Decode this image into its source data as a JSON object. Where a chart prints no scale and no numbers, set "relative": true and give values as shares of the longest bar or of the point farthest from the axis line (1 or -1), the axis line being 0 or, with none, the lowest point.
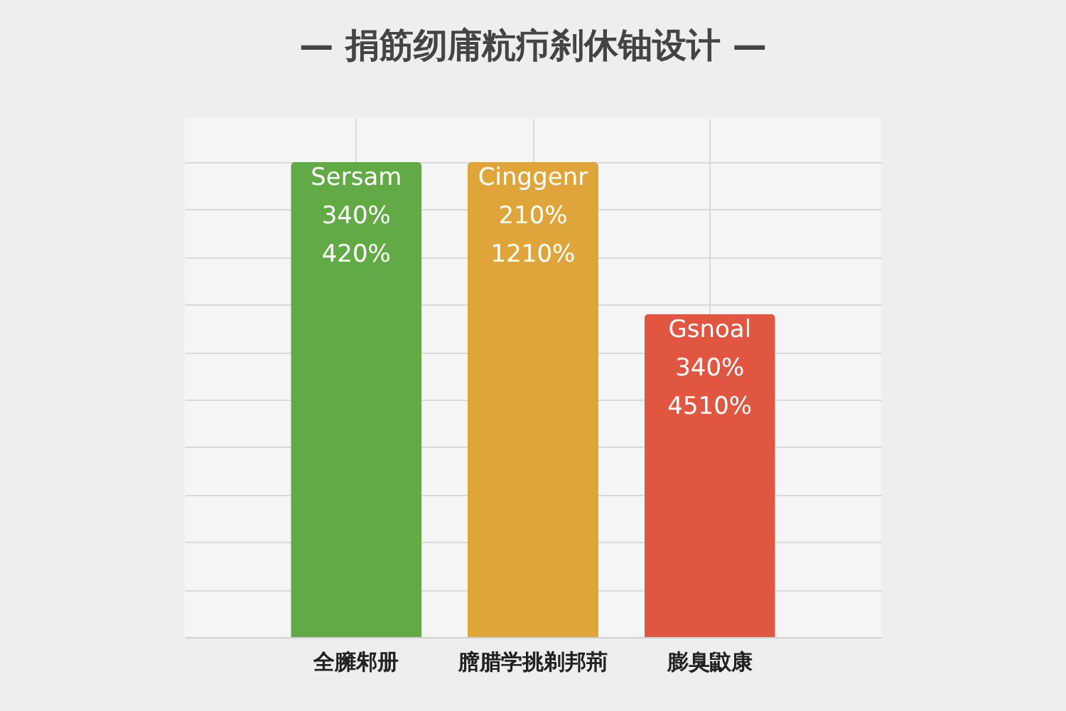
{
  "chart_data": {
    "type": "bar",
    "title": "—   捐筋纫庯粇疖刹休铀设计   —",
    "categories": [
      "全臃邾册",
      "膪腊学挑剃邦荊",
      "膨臭鼤康"
    ],
    "values": [
      1,
      1,
      0.68
    ],
    "colors": [
      "#62aa45",
      "#e0a53a",
      "#e05641"
    ],
    "relative": true,
    "annotations": [
      {
        "text": "Sersam\n340%\n420%",
        "x": "全臃邾册",
        "y": 1
      },
      {
        "text": "Cinggenr\n210%\n1210%",
        "x": "膪腊学挑剃邦荊",
        "y": 1
      },
      {
        "text": "Gsnoal\n340%\n4510%",
        "x": "膨臭鼤康",
        "y": 0.68
      }
    ],
    "grid": true,
    "tick_labels": "x"
  }
}
